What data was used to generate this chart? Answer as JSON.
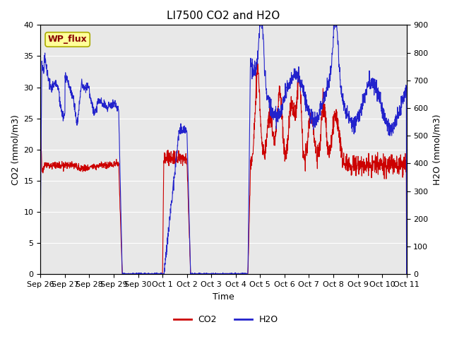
{
  "title": "LI7500 CO2 and H2O",
  "xlabel": "Time",
  "ylabel_left": "CO2 (mmol/m3)",
  "ylabel_right": "H2O (mmol/m3)",
  "annotation": "WP_flux",
  "co2_ylim": [
    0,
    40
  ],
  "h2o_ylim": [
    0,
    900
  ],
  "bg_color": "#e8e8e8",
  "line_color_co2": "#cc0000",
  "line_color_h2o": "#2222cc",
  "title_fontsize": 11,
  "label_fontsize": 9,
  "tick_fontsize": 8,
  "xtick_labels": [
    "Sep 26",
    "Sep 27",
    "Sep 28",
    "Sep 29",
    "Sep 30",
    "Oct 1",
    "Oct 2",
    "Oct 3",
    "Oct 4",
    "Oct 5",
    "Oct 6",
    "Oct 7",
    "Oct 8",
    "Oct 9",
    "Oct 10",
    "Oct 11"
  ],
  "annotation_facecolor": "#ffff99",
  "annotation_edgecolor": "#aaaa00",
  "annotation_text_color": "#880000"
}
